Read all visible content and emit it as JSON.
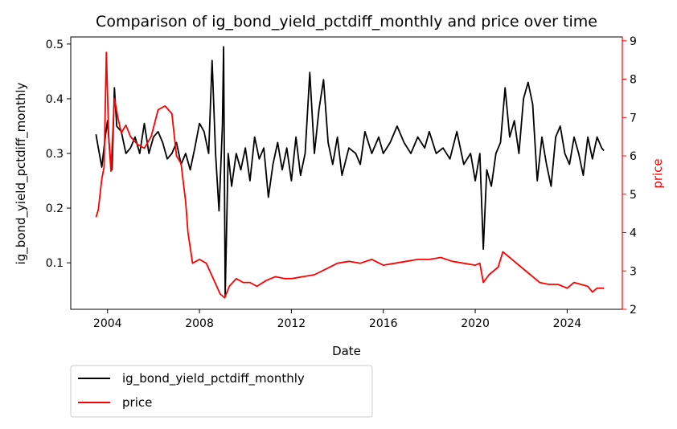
{
  "chart_data": {
    "type": "line",
    "title": "Comparison of ig_bond_yield_pctdiff_monthly and price over time",
    "xlabel": "Date",
    "ylabel_left": "ig_bond_yield_pctdiff_monthly",
    "ylabel_right": "price",
    "x_ticks": [
      "2004",
      "2008",
      "2012",
      "2016",
      "2020",
      "2024"
    ],
    "x_range": [
      2002.4,
      2026.4
    ],
    "y_left_ticks": [
      "0.1",
      "0.2",
      "0.3",
      "0.4",
      "0.5"
    ],
    "y_left_range": [
      0.015,
      0.513
    ],
    "y_right_ticks": [
      "2",
      "3",
      "4",
      "5",
      "6",
      "7",
      "8",
      "9"
    ],
    "y_right_range": [
      2.0,
      9.1
    ],
    "legend_position": "below-left",
    "colors": {
      "left": "#000000",
      "right": "#ff0000"
    },
    "series": [
      {
        "name": "ig_bond_yield_pctdiff_monthly",
        "axis": "left",
        "color": "#000000",
        "points": [
          [
            2003.5,
            0.335
          ],
          [
            2003.6,
            0.31
          ],
          [
            2003.75,
            0.275
          ],
          [
            2003.9,
            0.33
          ],
          [
            2004.0,
            0.36
          ],
          [
            2004.1,
            0.3
          ],
          [
            2004.2,
            0.27
          ],
          [
            2004.3,
            0.42
          ],
          [
            2004.4,
            0.35
          ],
          [
            2004.6,
            0.34
          ],
          [
            2004.8,
            0.3
          ],
          [
            2005.0,
            0.31
          ],
          [
            2005.2,
            0.33
          ],
          [
            2005.4,
            0.3
          ],
          [
            2005.6,
            0.355
          ],
          [
            2005.8,
            0.3
          ],
          [
            2006.0,
            0.33
          ],
          [
            2006.2,
            0.34
          ],
          [
            2006.4,
            0.32
          ],
          [
            2006.6,
            0.29
          ],
          [
            2006.8,
            0.3
          ],
          [
            2007.0,
            0.32
          ],
          [
            2007.2,
            0.28
          ],
          [
            2007.4,
            0.3
          ],
          [
            2007.6,
            0.27
          ],
          [
            2007.8,
            0.31
          ],
          [
            2008.0,
            0.355
          ],
          [
            2008.2,
            0.34
          ],
          [
            2008.4,
            0.3
          ],
          [
            2008.55,
            0.47
          ],
          [
            2008.7,
            0.3
          ],
          [
            2008.85,
            0.195
          ],
          [
            2009.0,
            0.35
          ],
          [
            2009.05,
            0.495
          ],
          [
            2009.12,
            0.04
          ],
          [
            2009.25,
            0.3
          ],
          [
            2009.4,
            0.24
          ],
          [
            2009.6,
            0.3
          ],
          [
            2009.8,
            0.27
          ],
          [
            2010.0,
            0.31
          ],
          [
            2010.2,
            0.25
          ],
          [
            2010.4,
            0.33
          ],
          [
            2010.6,
            0.29
          ],
          [
            2010.8,
            0.31
          ],
          [
            2011.0,
            0.22
          ],
          [
            2011.2,
            0.28
          ],
          [
            2011.4,
            0.32
          ],
          [
            2011.6,
            0.27
          ],
          [
            2011.8,
            0.31
          ],
          [
            2012.0,
            0.25
          ],
          [
            2012.2,
            0.33
          ],
          [
            2012.4,
            0.26
          ],
          [
            2012.6,
            0.3
          ],
          [
            2012.8,
            0.448
          ],
          [
            2013.0,
            0.3
          ],
          [
            2013.2,
            0.38
          ],
          [
            2013.4,
            0.435
          ],
          [
            2013.6,
            0.32
          ],
          [
            2013.8,
            0.28
          ],
          [
            2014.0,
            0.33
          ],
          [
            2014.2,
            0.26
          ],
          [
            2014.5,
            0.31
          ],
          [
            2014.8,
            0.3
          ],
          [
            2015.0,
            0.28
          ],
          [
            2015.2,
            0.34
          ],
          [
            2015.5,
            0.3
          ],
          [
            2015.8,
            0.33
          ],
          [
            2016.0,
            0.3
          ],
          [
            2016.3,
            0.32
          ],
          [
            2016.6,
            0.35
          ],
          [
            2016.9,
            0.32
          ],
          [
            2017.2,
            0.3
          ],
          [
            2017.5,
            0.33
          ],
          [
            2017.8,
            0.31
          ],
          [
            2018.0,
            0.34
          ],
          [
            2018.3,
            0.3
          ],
          [
            2018.6,
            0.31
          ],
          [
            2018.9,
            0.29
          ],
          [
            2019.2,
            0.34
          ],
          [
            2019.5,
            0.28
          ],
          [
            2019.8,
            0.3
          ],
          [
            2020.0,
            0.25
          ],
          [
            2020.2,
            0.3
          ],
          [
            2020.35,
            0.125
          ],
          [
            2020.5,
            0.27
          ],
          [
            2020.7,
            0.24
          ],
          [
            2020.9,
            0.3
          ],
          [
            2021.1,
            0.32
          ],
          [
            2021.3,
            0.42
          ],
          [
            2021.5,
            0.33
          ],
          [
            2021.7,
            0.36
          ],
          [
            2021.9,
            0.3
          ],
          [
            2022.1,
            0.4
          ],
          [
            2022.3,
            0.43
          ],
          [
            2022.5,
            0.39
          ],
          [
            2022.7,
            0.25
          ],
          [
            2022.9,
            0.33
          ],
          [
            2023.1,
            0.28
          ],
          [
            2023.3,
            0.24
          ],
          [
            2023.5,
            0.33
          ],
          [
            2023.7,
            0.35
          ],
          [
            2023.9,
            0.3
          ],
          [
            2024.1,
            0.28
          ],
          [
            2024.3,
            0.33
          ],
          [
            2024.5,
            0.3
          ],
          [
            2024.7,
            0.26
          ],
          [
            2024.9,
            0.33
          ],
          [
            2025.1,
            0.29
          ],
          [
            2025.3,
            0.33
          ],
          [
            2025.5,
            0.31
          ],
          [
            2025.6,
            0.305
          ]
        ]
      },
      {
        "name": "price",
        "axis": "right",
        "color": "#ff0000",
        "points": [
          [
            2003.5,
            4.4
          ],
          [
            2003.6,
            4.6
          ],
          [
            2003.75,
            5.4
          ],
          [
            2003.85,
            5.7
          ],
          [
            2003.95,
            8.7
          ],
          [
            2004.05,
            6.5
          ],
          [
            2004.15,
            5.6
          ],
          [
            2004.3,
            7.5
          ],
          [
            2004.45,
            7.0
          ],
          [
            2004.6,
            6.6
          ],
          [
            2004.8,
            6.8
          ],
          [
            2005.0,
            6.5
          ],
          [
            2005.3,
            6.3
          ],
          [
            2005.6,
            6.2
          ],
          [
            2005.9,
            6.5
          ],
          [
            2006.2,
            7.2
          ],
          [
            2006.5,
            7.3
          ],
          [
            2006.8,
            7.1
          ],
          [
            2007.0,
            6.0
          ],
          [
            2007.2,
            5.8
          ],
          [
            2007.4,
            4.8
          ],
          [
            2007.5,
            4.0
          ],
          [
            2007.7,
            3.2
          ],
          [
            2008.0,
            3.3
          ],
          [
            2008.3,
            3.2
          ],
          [
            2008.6,
            2.8
          ],
          [
            2008.9,
            2.4
          ],
          [
            2009.1,
            2.3
          ],
          [
            2009.3,
            2.6
          ],
          [
            2009.6,
            2.8
          ],
          [
            2009.9,
            2.7
          ],
          [
            2010.2,
            2.7
          ],
          [
            2010.5,
            2.6
          ],
          [
            2010.9,
            2.75
          ],
          [
            2011.3,
            2.85
          ],
          [
            2011.7,
            2.8
          ],
          [
            2012.0,
            2.8
          ],
          [
            2012.5,
            2.85
          ],
          [
            2013.0,
            2.9
          ],
          [
            2013.5,
            3.05
          ],
          [
            2014.0,
            3.2
          ],
          [
            2014.5,
            3.25
          ],
          [
            2015.0,
            3.2
          ],
          [
            2015.5,
            3.3
          ],
          [
            2016.0,
            3.15
          ],
          [
            2016.5,
            3.2
          ],
          [
            2017.0,
            3.25
          ],
          [
            2017.5,
            3.3
          ],
          [
            2018.0,
            3.3
          ],
          [
            2018.5,
            3.35
          ],
          [
            2019.0,
            3.25
          ],
          [
            2019.5,
            3.2
          ],
          [
            2020.0,
            3.15
          ],
          [
            2020.2,
            3.2
          ],
          [
            2020.35,
            2.7
          ],
          [
            2020.6,
            2.9
          ],
          [
            2021.0,
            3.1
          ],
          [
            2021.2,
            3.5
          ],
          [
            2021.5,
            3.35
          ],
          [
            2022.0,
            3.1
          ],
          [
            2022.4,
            2.9
          ],
          [
            2022.8,
            2.7
          ],
          [
            2023.2,
            2.65
          ],
          [
            2023.6,
            2.65
          ],
          [
            2024.0,
            2.55
          ],
          [
            2024.3,
            2.7
          ],
          [
            2024.6,
            2.65
          ],
          [
            2024.9,
            2.6
          ],
          [
            2025.1,
            2.45
          ],
          [
            2025.3,
            2.55
          ],
          [
            2025.6,
            2.55
          ]
        ]
      }
    ]
  }
}
